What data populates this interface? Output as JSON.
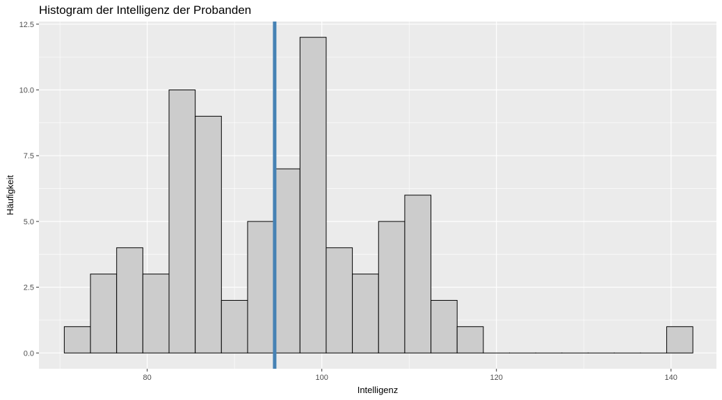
{
  "chart_data": {
    "type": "bar",
    "title": "Histogram der Intelligenz der Probanden",
    "xlabel": "Intelligenz",
    "ylabel": "Häufigkeit",
    "x_ticks": [
      "80",
      "100",
      "120",
      "140"
    ],
    "y_ticks": [
      "0.0",
      "2.5",
      "5.0",
      "7.5",
      "10.0",
      "12.5"
    ],
    "xlim": [
      67.6,
      145.2
    ],
    "ylim": [
      -0.6,
      12.6
    ],
    "bin_width": 3,
    "bins": [
      {
        "center": 72,
        "count": 1
      },
      {
        "center": 75,
        "count": 3
      },
      {
        "center": 78,
        "count": 4
      },
      {
        "center": 81,
        "count": 3
      },
      {
        "center": 84,
        "count": 10
      },
      {
        "center": 87,
        "count": 9
      },
      {
        "center": 90,
        "count": 2
      },
      {
        "center": 93,
        "count": 5
      },
      {
        "center": 96,
        "count": 7
      },
      {
        "center": 99,
        "count": 12
      },
      {
        "center": 102,
        "count": 4
      },
      {
        "center": 105,
        "count": 3
      },
      {
        "center": 108,
        "count": 5
      },
      {
        "center": 111,
        "count": 6
      },
      {
        "center": 114,
        "count": 2
      },
      {
        "center": 117,
        "count": 1
      },
      {
        "center": 120,
        "count": 0
      },
      {
        "center": 123,
        "count": 0
      },
      {
        "center": 126,
        "count": 0
      },
      {
        "center": 129,
        "count": 0
      },
      {
        "center": 132,
        "count": 0
      },
      {
        "center": 135,
        "count": 0
      },
      {
        "center": 138,
        "count": 0
      },
      {
        "center": 141,
        "count": 1
      }
    ],
    "vline": {
      "x": 94.6,
      "color": "#4682b4"
    },
    "bar_fill": "#cccccc",
    "bar_outline": "#000000",
    "panel_background": "#ebebeb",
    "grid_color": "#ffffff",
    "grid": true,
    "legend": "none"
  }
}
